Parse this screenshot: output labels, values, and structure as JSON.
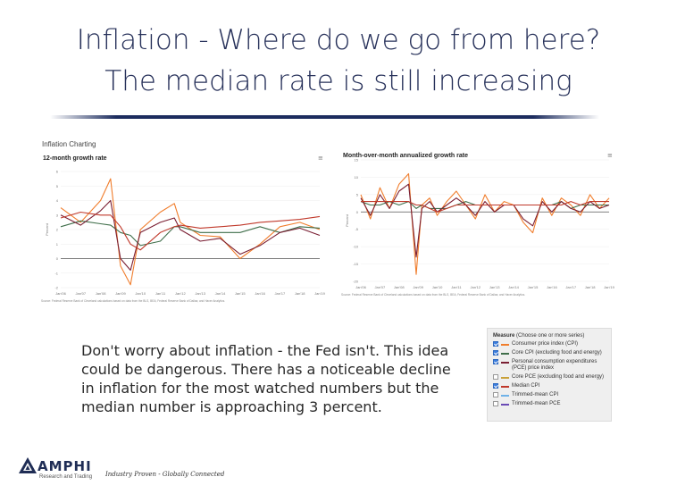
{
  "slide": {
    "title_line1": "Inflation - Where do we go from here?",
    "title_line2": "The median rate is still increasing",
    "section_label": "Inflation Charting",
    "body_text": "Don't worry about inflation - the Fed isn't. This idea could be dangerous. There has a noticeable decline in inflation for the most watched numbers but the median number is approaching 3 percent.",
    "menu_icon": "≡"
  },
  "colors": {
    "title": "#27315a",
    "cpi": "#f07d2c",
    "core_cpi": "#3f6e4a",
    "pce": "#7a1f33",
    "core_pce": "#c9a13a",
    "median": "#c0392b",
    "trimmed_cpi": "#6fb2e8",
    "trimmed_pce": "#6a4bb5"
  },
  "legend": {
    "heading_bold": "Measure",
    "heading_rest": "(Choose one or more series)",
    "items": [
      {
        "label": "Consumer price index (CPI)",
        "checked": true,
        "color": "#f07d2c"
      },
      {
        "label": "Core CPI (excluding food and energy)",
        "checked": true,
        "color": "#3f6e4a"
      },
      {
        "label": "Personal consumption expenditures (PCE) price index",
        "checked": true,
        "color": "#7a1f33"
      },
      {
        "label": "Core PCE (excluding food and energy)",
        "checked": false,
        "color": "#c9a13a"
      },
      {
        "label": "Median CPI",
        "checked": true,
        "color": "#c0392b"
      },
      {
        "label": "Trimmed-mean CPI",
        "checked": false,
        "color": "#6fb2e8"
      },
      {
        "label": "Trimmed-mean PCE",
        "checked": false,
        "color": "#6a4bb5"
      }
    ]
  },
  "footer": {
    "logo_name": "AMPHI",
    "logo_sub": "Research and Trading",
    "tagline": "Industry Proven - Globally Connected"
  },
  "chart_data": [
    {
      "type": "line",
      "title": "12-month growth rate",
      "ylabel": "Percent",
      "ylim": [
        -2,
        6
      ],
      "yticks": [
        "6",
        "5",
        "4",
        "3",
        "2",
        "1",
        "0",
        "-1",
        "-2"
      ],
      "xticks": [
        "Jan'06",
        "Jan'07",
        "Jan'08",
        "Jan'09",
        "Jan'10",
        "Jan'11",
        "Jan'12",
        "Jan'13",
        "Jan'14",
        "Jan'15",
        "Jan'16",
        "Jan'17",
        "Jan'18",
        "Jan'19"
      ],
      "x": [
        2006,
        2007,
        2008,
        2008.5,
        2009,
        2009.5,
        2010,
        2011,
        2011.7,
        2012,
        2013,
        2014,
        2015,
        2016,
        2017,
        2018,
        2019
      ],
      "series": [
        {
          "name": "Consumer price index (CPI)",
          "color": "#f07d2c",
          "values": [
            3.5,
            2.5,
            4.0,
            5.5,
            -0.5,
            -1.8,
            2.0,
            3.2,
            3.8,
            2.5,
            1.6,
            1.5,
            0.0,
            1.0,
            2.2,
            2.5,
            2.0
          ]
        },
        {
          "name": "Core CPI (excluding food and energy)",
          "color": "#3f6e4a",
          "values": [
            2.2,
            2.6,
            2.4,
            2.3,
            1.8,
            1.6,
            0.9,
            1.2,
            2.2,
            2.2,
            1.8,
            1.8,
            1.8,
            2.2,
            1.8,
            2.2,
            2.1
          ]
        },
        {
          "name": "Personal consumption expenditures (PCE) price index",
          "color": "#7a1f33",
          "values": [
            3.0,
            2.3,
            3.3,
            4.0,
            0.0,
            -0.8,
            1.8,
            2.5,
            2.8,
            2.0,
            1.2,
            1.4,
            0.3,
            0.9,
            1.8,
            2.1,
            1.6
          ]
        },
        {
          "name": "Median CPI",
          "color": "#c0392b",
          "values": [
            2.8,
            3.2,
            3.0,
            3.0,
            2.2,
            1.0,
            0.6,
            1.8,
            2.2,
            2.3,
            2.1,
            2.2,
            2.3,
            2.5,
            2.6,
            2.7,
            2.9
          ]
        }
      ],
      "source_note": "Source: Federal Reserve Bank of Cleveland calculations based on data from the BLS, BEA; Federal Reserve Bank of Dallas; and Haver Analytics."
    },
    {
      "type": "line",
      "title": "Month-over-month annualized growth rate",
      "ylabel": "Percent",
      "ylim": [
        -20,
        15
      ],
      "yticks": [
        "15",
        "10",
        "5",
        "0",
        "-5",
        "-10",
        "-15",
        "-20"
      ],
      "xticks": [
        "Jan'06",
        "Jan'07",
        "Jan'08",
        "Jan'09",
        "Jan'10",
        "Jan'11",
        "Jan'12",
        "Jan'13",
        "Jan'14",
        "Jan'15",
        "Jan'16",
        "Jan'17",
        "Jan'18",
        "Jan'19"
      ],
      "x": [
        2006,
        2006.5,
        2007,
        2007.5,
        2008,
        2008.5,
        2008.9,
        2009.2,
        2009.6,
        2010,
        2010.5,
        2011,
        2011.5,
        2012,
        2012.5,
        2013,
        2013.5,
        2014,
        2014.5,
        2015,
        2015.5,
        2016,
        2016.5,
        2017,
        2017.5,
        2018,
        2018.5,
        2019
      ],
      "series": [
        {
          "name": "Consumer price index (CPI)",
          "color": "#f07d2c",
          "values": [
            5,
            -2,
            7,
            1,
            8,
            11,
            -18,
            2,
            4,
            -1,
            3,
            6,
            2,
            -2,
            5,
            0,
            3,
            2,
            -3,
            -6,
            4,
            -1,
            4,
            2,
            -1,
            5,
            1,
            4
          ]
        },
        {
          "name": "Core CPI (excluding food and energy)",
          "color": "#3f6e4a",
          "values": [
            3,
            2,
            2,
            3,
            2,
            3,
            1,
            2,
            1,
            1,
            1,
            2,
            3,
            2,
            2,
            2,
            2,
            2,
            2,
            2,
            2,
            2,
            3,
            1,
            2,
            2,
            2,
            2
          ]
        },
        {
          "name": "Personal consumption expenditures (PCE) price index",
          "color": "#7a1f33",
          "values": [
            4,
            -1,
            5,
            1,
            6,
            8,
            -13,
            1,
            3,
            0,
            2,
            4,
            2,
            -1,
            3,
            0,
            2,
            2,
            -2,
            -4,
            3,
            0,
            3,
            1,
            0,
            3,
            1,
            2
          ]
        },
        {
          "name": "Median CPI",
          "color": "#c0392b",
          "values": [
            3,
            3,
            3,
            3,
            3,
            3,
            2,
            2,
            1,
            0,
            1,
            2,
            2,
            2,
            2,
            2,
            2,
            2,
            2,
            2,
            2,
            2,
            2,
            3,
            2,
            3,
            3,
            3
          ]
        }
      ],
      "source_note": "Source: Federal Reserve Bank of Cleveland calculations based on data from the BLS, BEA; Federal Reserve Bank of Dallas; and Haver Analytics."
    }
  ]
}
